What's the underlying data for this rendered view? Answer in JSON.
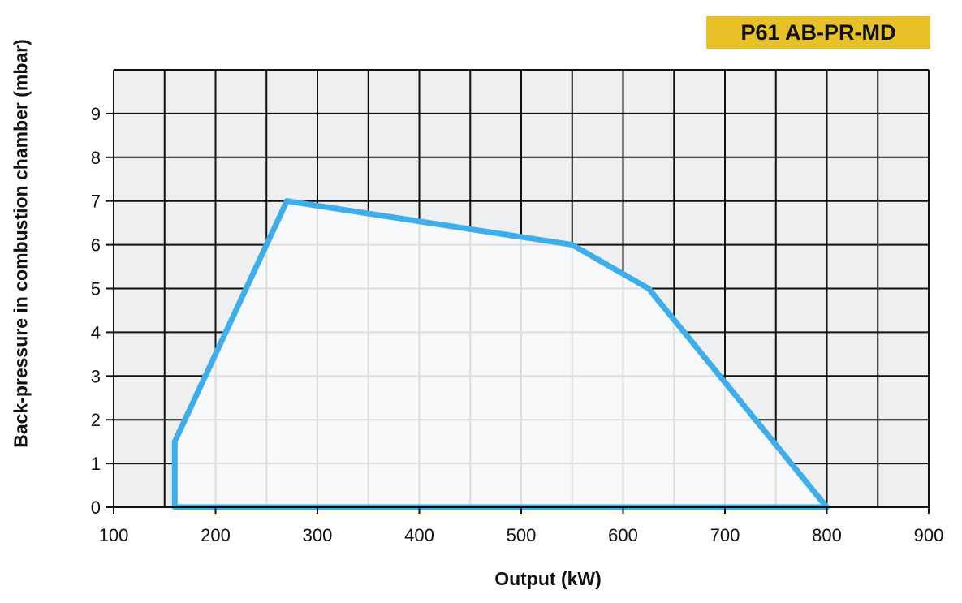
{
  "model_badge": {
    "text": "P61 AB-PR-MD",
    "background": "#e8c028"
  },
  "chart_data": {
    "type": "area",
    "title": "P61 AB-PR-MD",
    "xlabel": "Output (kW)",
    "ylabel": "Back-pressure in combustion chamber (mbar)",
    "xlim": [
      100,
      900
    ],
    "ylim": [
      0,
      10
    ],
    "x_ticks": [
      100,
      200,
      300,
      400,
      500,
      600,
      700,
      800,
      900
    ],
    "y_ticks": [
      0,
      1,
      2,
      3,
      4,
      5,
      6,
      7,
      8,
      9
    ],
    "grid": true,
    "x_grid_step": 50,
    "series": [
      {
        "x": [
          160,
          160,
          270,
          550,
          625,
          800
        ],
        "y": [
          0,
          1.5,
          7,
          6,
          5,
          0
        ],
        "closed": true,
        "fill": "#f8f9fa",
        "line_color": "#3daee9"
      }
    ],
    "colors": {
      "plot_background": "#eeeff0",
      "grid": "#111111",
      "envelope": "#3daee9"
    }
  }
}
